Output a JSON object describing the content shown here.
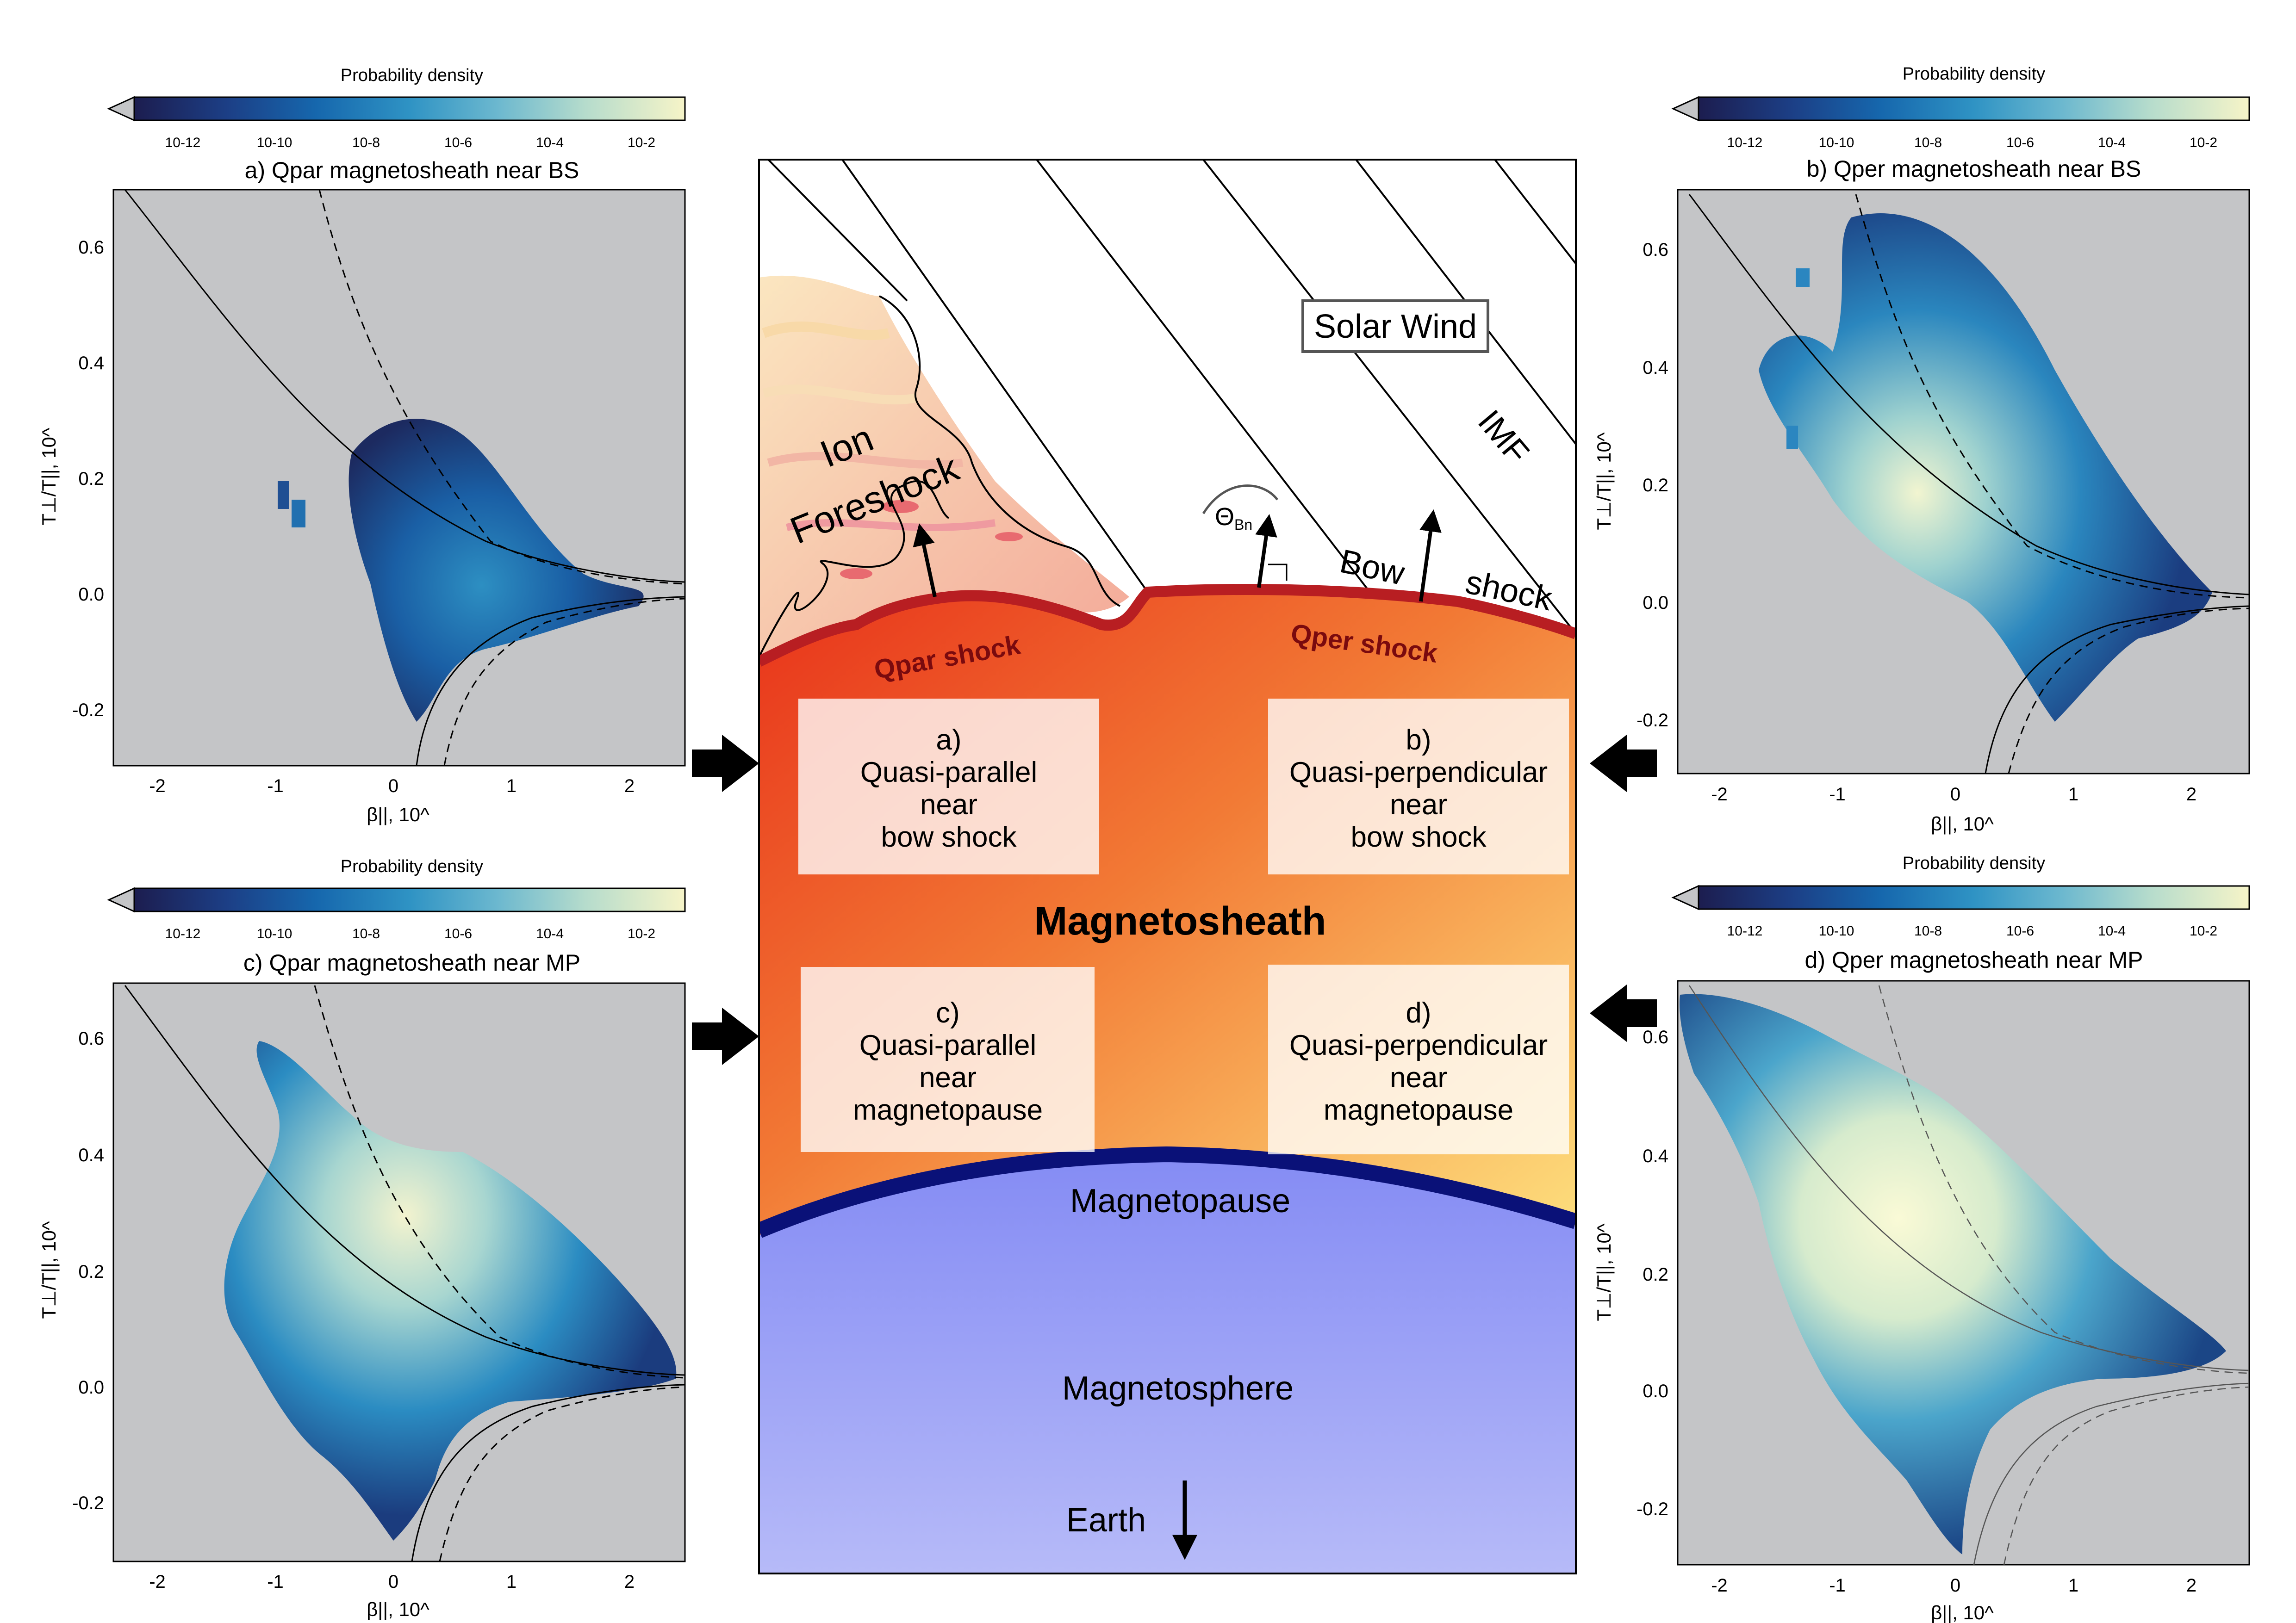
{
  "colors": {
    "density_scale": [
      "#1c1d4f",
      "#1c3f86",
      "#1667ad",
      "#2f93c4",
      "#6cb8cf",
      "#b6dccc",
      "#f6f4c8"
    ],
    "panel_bg": "#c4c5c7",
    "magnetosheath_red": "#ee3a1e",
    "magnetosheath_yellow": "#fbd97a",
    "magnetosphere_blue": "#8f95f5",
    "magnetopause_navy": "#0a1178",
    "shock_red": "#c01e22",
    "foreshock_pink": "#f3b2a2"
  },
  "panels": [
    {
      "id": "a",
      "title": "a) Qpar magnetosheath near BS",
      "colorbar_title": "Probability density",
      "colorbar_ticks": [
        "10-12",
        "10-10",
        "10-8",
        "10-6",
        "10-4",
        "10-2"
      ],
      "xlabel": "β||, 10^",
      "ylabel": "T⊥/T||, 10^",
      "xticks": [
        "-2",
        "-1",
        "0",
        "1",
        "2"
      ],
      "yticks": [
        "0.6",
        "0.4",
        "0.2",
        "0.0",
        "-0.2"
      ]
    },
    {
      "id": "b",
      "title": "b) Qper magnetosheath near BS",
      "colorbar_title": "Probability density",
      "colorbar_ticks": [
        "10-12",
        "10-10",
        "10-8",
        "10-6",
        "10-4",
        "10-2"
      ],
      "xlabel": "β||, 10^",
      "ylabel": "T⊥/T||, 10^",
      "xticks": [
        "-2",
        "-1",
        "0",
        "1",
        "2"
      ],
      "yticks": [
        "0.6",
        "0.4",
        "0.2",
        "0.0",
        "-0.2"
      ]
    },
    {
      "id": "c",
      "title": "c) Qpar magnetosheath near MP",
      "colorbar_title": "Probability density",
      "colorbar_ticks": [
        "10-12",
        "10-10",
        "10-8",
        "10-6",
        "10-4",
        "10-2"
      ],
      "xlabel": "β||, 10^",
      "ylabel": "T⊥/T||, 10^",
      "xticks": [
        "-2",
        "-1",
        "0",
        "1",
        "2"
      ],
      "yticks": [
        "0.6",
        "0.4",
        "0.2",
        "0.0",
        "-0.2"
      ]
    },
    {
      "id": "d",
      "title": "d) Qper magnetosheath near MP",
      "colorbar_title": "Probability density",
      "colorbar_ticks": [
        "10-12",
        "10-10",
        "10-8",
        "10-6",
        "10-4",
        "10-2"
      ],
      "xlabel": "β||, 10^",
      "ylabel": "T⊥/T||, 10^",
      "xticks": [
        "-2",
        "-1",
        "0",
        "1",
        "2"
      ],
      "yticks": [
        "0.6",
        "0.4",
        "0.2",
        "0.0",
        "-0.2"
      ]
    }
  ],
  "diagram": {
    "solar_wind": "Solar Wind",
    "imf": "IMF",
    "ion": "Ion",
    "foreshock": "Foreshock",
    "theta_bn_symbol": "Θ",
    "theta_bn_sub": "Bn",
    "bow": "Bow",
    "shock": "shock",
    "qpar_shock": "Qpar shock",
    "qper_shock": "Qper shock",
    "magnetosheath": "Magnetosheath",
    "magnetopause": "Magnetopause",
    "magnetosphere": "Magnetosphere",
    "earth": "Earth",
    "boxes": [
      {
        "lines": [
          "a)",
          "Quasi-parallel",
          "near",
          "bow shock"
        ]
      },
      {
        "lines": [
          "b)",
          "Quasi-perpendicular",
          "near",
          "bow shock"
        ]
      },
      {
        "lines": [
          "c)",
          "Quasi-parallel",
          "near",
          "magnetopause"
        ]
      },
      {
        "lines": [
          "d)",
          "Quasi-perpendicular",
          "near",
          "magnetopause"
        ]
      }
    ]
  }
}
